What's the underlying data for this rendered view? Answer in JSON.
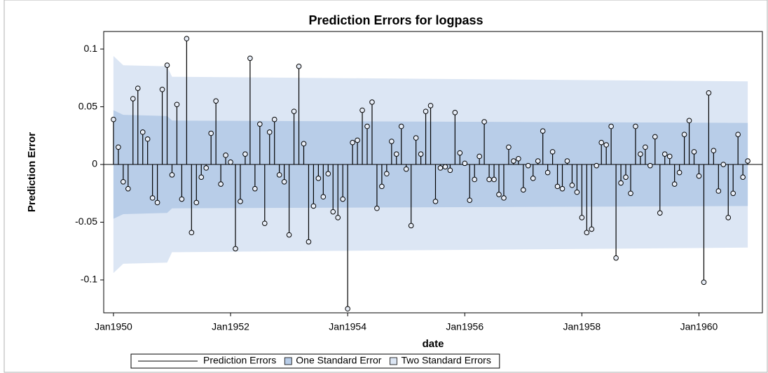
{
  "chart_data": {
    "type": "needle",
    "title": "Prediction Errors for logpass",
    "xlabel": "date",
    "ylabel": "Prediction Error",
    "x": [
      "1950-01",
      "1950-02",
      "1950-03",
      "1950-04",
      "1950-05",
      "1950-06",
      "1950-07",
      "1950-08",
      "1950-09",
      "1950-10",
      "1950-11",
      "1950-12",
      "1951-01",
      "1951-02",
      "1951-03",
      "1951-04",
      "1951-05",
      "1951-06",
      "1951-07",
      "1951-08",
      "1951-09",
      "1951-10",
      "1951-11",
      "1951-12",
      "1952-01",
      "1952-02",
      "1952-03",
      "1952-04",
      "1952-05",
      "1952-06",
      "1952-07",
      "1952-08",
      "1952-09",
      "1952-10",
      "1952-11",
      "1952-12",
      "1953-01",
      "1953-02",
      "1953-03",
      "1953-04",
      "1953-05",
      "1953-06",
      "1953-07",
      "1953-08",
      "1953-09",
      "1953-10",
      "1953-11",
      "1953-12",
      "1954-01",
      "1954-02",
      "1954-03",
      "1954-04",
      "1954-05",
      "1954-06",
      "1954-07",
      "1954-08",
      "1954-09",
      "1954-10",
      "1954-11",
      "1954-12",
      "1955-01",
      "1955-02",
      "1955-03",
      "1955-04",
      "1955-05",
      "1955-06",
      "1955-07",
      "1955-08",
      "1955-09",
      "1955-10",
      "1955-11",
      "1955-12",
      "1956-01",
      "1956-02",
      "1956-03",
      "1956-04",
      "1956-05",
      "1956-06",
      "1956-07",
      "1956-08",
      "1956-09",
      "1956-10",
      "1956-11",
      "1956-12",
      "1957-01",
      "1957-02",
      "1957-03",
      "1957-04",
      "1957-05",
      "1957-06",
      "1957-07",
      "1957-08",
      "1957-09",
      "1957-10",
      "1957-11",
      "1957-12",
      "1958-01",
      "1958-02",
      "1958-03",
      "1958-04",
      "1958-05",
      "1958-06",
      "1958-07",
      "1958-08",
      "1958-09",
      "1958-10",
      "1958-11",
      "1958-12",
      "1959-01",
      "1959-02",
      "1959-03",
      "1959-04",
      "1959-05",
      "1959-06",
      "1959-07",
      "1959-08",
      "1959-09",
      "1959-10",
      "1959-11",
      "1959-12",
      "1960-01",
      "1960-02",
      "1960-03",
      "1960-04",
      "1960-05",
      "1960-06",
      "1960-07",
      "1960-08",
      "1960-09",
      "1960-10",
      "1960-11"
    ],
    "series": [
      {
        "name": "Prediction Errors",
        "color": "#000000",
        "values": [
          0.039,
          0.015,
          -0.015,
          -0.021,
          0.057,
          0.066,
          0.028,
          0.022,
          -0.029,
          -0.033,
          0.065,
          0.086,
          -0.009,
          0.052,
          -0.03,
          0.109,
          -0.059,
          -0.033,
          -0.011,
          -0.003,
          0.027,
          0.055,
          -0.017,
          0.008,
          0.002,
          -0.073,
          -0.032,
          0.009,
          0.092,
          -0.021,
          0.035,
          -0.051,
          0.028,
          0.039,
          -0.009,
          -0.015,
          -0.061,
          0.046,
          0.085,
          0.018,
          -0.067,
          -0.036,
          -0.012,
          -0.028,
          -0.008,
          -0.041,
          -0.046,
          -0.03,
          -0.125,
          0.019,
          0.021,
          0.047,
          0.033,
          0.054,
          -0.038,
          -0.019,
          -0.008,
          0.02,
          0.009,
          0.033,
          -0.004,
          -0.053,
          0.023,
          0.009,
          0.046,
          0.051,
          -0.032,
          -0.003,
          -0.002,
          -0.005,
          0.045,
          0.01,
          0.001,
          -0.031,
          -0.013,
          0.007,
          0.037,
          -0.013,
          -0.013,
          -0.026,
          -0.029,
          0.015,
          0.003,
          0.005,
          -0.022,
          -0.001,
          -0.012,
          0.003,
          0.029,
          -0.007,
          0.011,
          -0.019,
          -0.021,
          0.003,
          -0.018,
          -0.024,
          -0.046,
          -0.059,
          -0.056,
          -0.001,
          0.019,
          0.017,
          0.033,
          -0.081,
          -0.016,
          -0.011,
          -0.025,
          0.033,
          0.009,
          0.015,
          -0.001,
          0.024,
          -0.042,
          0.009,
          0.007,
          -0.017,
          -0.007,
          0.026,
          0.038,
          0.011,
          -0.01,
          -0.102,
          0.062,
          0.012,
          -0.023,
          0.0,
          -0.046,
          -0.025,
          0.026,
          -0.011,
          0.003
        ]
      }
    ],
    "bands": [
      {
        "name": "One Standard Error",
        "color": "#b8cde8",
        "x": [
          "1950-01",
          "1950-03",
          "1950-12",
          "1951-01",
          "1960-11"
        ],
        "values": [
          0.047,
          0.043,
          0.042,
          0.038,
          0.036
        ]
      },
      {
        "name": "Two Standard Errors",
        "color": "#dce6f4",
        "x": [
          "1950-01",
          "1950-03",
          "1950-12",
          "1951-01",
          "1960-11"
        ],
        "values": [
          0.094,
          0.086,
          0.085,
          0.076,
          0.072
        ]
      }
    ],
    "xlim": [
      "1949-11",
      "1961-02"
    ],
    "xticks": [
      {
        "value": "1950-01",
        "label": "Jan1950"
      },
      {
        "value": "1952-01",
        "label": "Jan1952"
      },
      {
        "value": "1954-01",
        "label": "Jan1954"
      },
      {
        "value": "1956-01",
        "label": "Jan1956"
      },
      {
        "value": "1958-01",
        "label": "Jan1958"
      },
      {
        "value": "1960-01",
        "label": "Jan1960"
      }
    ],
    "ylim": [
      -0.1285,
      0.1152
    ],
    "yticks": [
      -0.1,
      -0.05,
      0,
      0.05,
      0.1
    ]
  }
}
